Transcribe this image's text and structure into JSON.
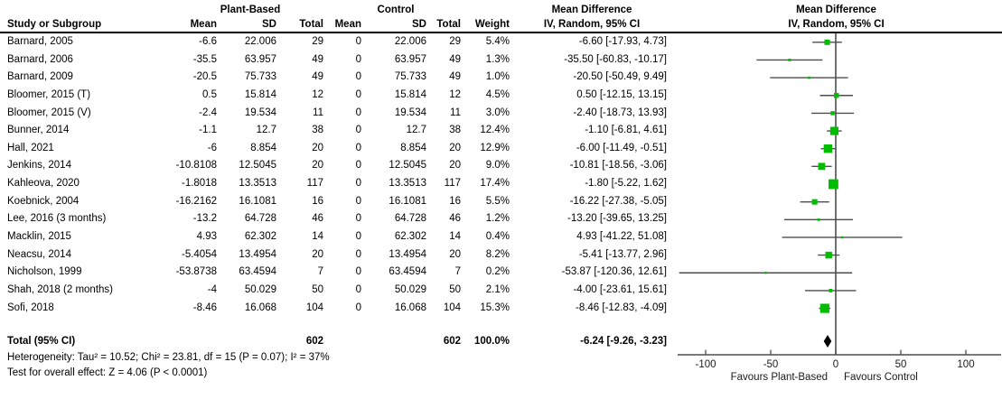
{
  "header": {
    "study_col": "Study or Subgroup",
    "group1": "Plant-Based",
    "group2": "Control",
    "mean": "Mean",
    "sd": "SD",
    "total": "Total",
    "weight": "Weight",
    "md_title": "Mean Difference",
    "md_subtitle": "IV, Random, 95% CI",
    "plot_title": "Mean Difference",
    "plot_subtitle": "IV, Random, 95% CI"
  },
  "chart_data": {
    "type": "forest",
    "effect_measure": "Mean Difference, IV, Random, 95% CI",
    "marker_color": "#00bd00",
    "line_color": "#4d4d4d",
    "x_axis": {
      "ticks": [
        -100,
        -50,
        0,
        50,
        100
      ],
      "xlim": [
        -122,
        128
      ],
      "label_left": "Favours Plant-Based",
      "label_right": "Favours Control"
    },
    "studies": [
      {
        "name": "Barnard, 2005",
        "pb_mean": "-6.6",
        "pb_sd": "22.006",
        "pb_total": "29",
        "c_mean": "0",
        "c_sd": "22.006",
        "c_total": "29",
        "weight": "5.4%",
        "w": 5.4,
        "md": -6.6,
        "lo": -17.93,
        "hi": 4.73,
        "ci_label": "-6.60 [-17.93, 4.73]"
      },
      {
        "name": "Barnard, 2006",
        "pb_mean": "-35.5",
        "pb_sd": "63.957",
        "pb_total": "49",
        "c_mean": "0",
        "c_sd": "63.957",
        "c_total": "49",
        "weight": "1.3%",
        "w": 1.3,
        "md": -35.5,
        "lo": -60.83,
        "hi": -10.17,
        "ci_label": "-35.50 [-60.83, -10.17]"
      },
      {
        "name": "Barnard, 2009",
        "pb_mean": "-20.5",
        "pb_sd": "75.733",
        "pb_total": "49",
        "c_mean": "0",
        "c_sd": "75.733",
        "c_total": "49",
        "weight": "1.0%",
        "w": 1.0,
        "md": -20.5,
        "lo": -50.49,
        "hi": 9.49,
        "ci_label": "-20.50 [-50.49, 9.49]"
      },
      {
        "name": "Bloomer, 2015 (T)",
        "pb_mean": "0.5",
        "pb_sd": "15.814",
        "pb_total": "12",
        "c_mean": "0",
        "c_sd": "15.814",
        "c_total": "12",
        "weight": "4.5%",
        "w": 4.5,
        "md": 0.5,
        "lo": -12.15,
        "hi": 13.15,
        "ci_label": "0.50 [-12.15, 13.15]"
      },
      {
        "name": "Bloomer, 2015 (V)",
        "pb_mean": "-2.4",
        "pb_sd": "19.534",
        "pb_total": "11",
        "c_mean": "0",
        "c_sd": "19.534",
        "c_total": "11",
        "weight": "3.0%",
        "w": 3.0,
        "md": -2.4,
        "lo": -18.73,
        "hi": 13.93,
        "ci_label": "-2.40 [-18.73, 13.93]"
      },
      {
        "name": "Bunner, 2014",
        "pb_mean": "-1.1",
        "pb_sd": "12.7",
        "pb_total": "38",
        "c_mean": "0",
        "c_sd": "12.7",
        "c_total": "38",
        "weight": "12.4%",
        "w": 12.4,
        "md": -1.1,
        "lo": -6.81,
        "hi": 4.61,
        "ci_label": "-1.10 [-6.81, 4.61]"
      },
      {
        "name": "Hall, 2021",
        "pb_mean": "-6",
        "pb_sd": "8.854",
        "pb_total": "20",
        "c_mean": "0",
        "c_sd": "8.854",
        "c_total": "20",
        "weight": "12.9%",
        "w": 12.9,
        "md": -6.0,
        "lo": -11.49,
        "hi": -0.51,
        "ci_label": "-6.00 [-11.49, -0.51]"
      },
      {
        "name": "Jenkins, 2014",
        "pb_mean": "-10.8108",
        "pb_sd": "12.5045",
        "pb_total": "20",
        "c_mean": "0",
        "c_sd": "12.5045",
        "c_total": "20",
        "weight": "9.0%",
        "w": 9.0,
        "md": -10.81,
        "lo": -18.56,
        "hi": -3.06,
        "ci_label": "-10.81 [-18.56, -3.06]"
      },
      {
        "name": "Kahleova, 2020",
        "pb_mean": "-1.8018",
        "pb_sd": "13.3513",
        "pb_total": "117",
        "c_mean": "0",
        "c_sd": "13.3513",
        "c_total": "117",
        "weight": "17.4%",
        "w": 17.4,
        "md": -1.8,
        "lo": -5.22,
        "hi": 1.62,
        "ci_label": "-1.80 [-5.22, 1.62]"
      },
      {
        "name": "Koebnick, 2004",
        "pb_mean": "-16.2162",
        "pb_sd": "16.1081",
        "pb_total": "16",
        "c_mean": "0",
        "c_sd": "16.1081",
        "c_total": "16",
        "weight": "5.5%",
        "w": 5.5,
        "md": -16.22,
        "lo": -27.38,
        "hi": -5.05,
        "ci_label": "-16.22 [-27.38, -5.05]"
      },
      {
        "name": "Lee, 2016 (3 months)",
        "pb_mean": "-13.2",
        "pb_sd": "64.728",
        "pb_total": "46",
        "c_mean": "0",
        "c_sd": "64.728",
        "c_total": "46",
        "weight": "1.2%",
        "w": 1.2,
        "md": -13.2,
        "lo": -39.65,
        "hi": 13.25,
        "ci_label": "-13.20 [-39.65, 13.25]"
      },
      {
        "name": "Macklin, 2015",
        "pb_mean": "4.93",
        "pb_sd": "62.302",
        "pb_total": "14",
        "c_mean": "0",
        "c_sd": "62.302",
        "c_total": "14",
        "weight": "0.4%",
        "w": 0.4,
        "md": 4.93,
        "lo": -41.22,
        "hi": 51.08,
        "ci_label": "4.93 [-41.22, 51.08]"
      },
      {
        "name": "Neacsu, 2014",
        "pb_mean": "-5.4054",
        "pb_sd": "13.4954",
        "pb_total": "20",
        "c_mean": "0",
        "c_sd": "13.4954",
        "c_total": "20",
        "weight": "8.2%",
        "w": 8.2,
        "md": -5.41,
        "lo": -13.77,
        "hi": 2.96,
        "ci_label": "-5.41 [-13.77, 2.96]"
      },
      {
        "name": "Nicholson, 1999",
        "pb_mean": "-53.8738",
        "pb_sd": "63.4594",
        "pb_total": "7",
        "c_mean": "0",
        "c_sd": "63.4594",
        "c_total": "7",
        "weight": "0.2%",
        "w": 0.2,
        "md": -53.87,
        "lo": -120.36,
        "hi": 12.61,
        "ci_label": "-53.87 [-120.36, 12.61]"
      },
      {
        "name": "Shah, 2018 (2 months)",
        "pb_mean": "-4",
        "pb_sd": "50.029",
        "pb_total": "50",
        "c_mean": "0",
        "c_sd": "50.029",
        "c_total": "50",
        "weight": "2.1%",
        "w": 2.1,
        "md": -4.0,
        "lo": -23.61,
        "hi": 15.61,
        "ci_label": "-4.00 [-23.61, 15.61]"
      },
      {
        "name": "Sofi, 2018",
        "pb_mean": "-8.46",
        "pb_sd": "16.068",
        "pb_total": "104",
        "c_mean": "0",
        "c_sd": "16.068",
        "c_total": "104",
        "weight": "15.3%",
        "w": 15.3,
        "md": -8.46,
        "lo": -12.83,
        "hi": -4.09,
        "ci_label": "-8.46 [-12.83, -4.09]"
      }
    ],
    "total": {
      "label": "Total (95% CI)",
      "pb_total": "602",
      "c_total": "602",
      "weight": "100.0%",
      "md": -6.24,
      "lo": -9.26,
      "hi": -3.23,
      "ci_label": "-6.24 [-9.26, -3.23]"
    }
  },
  "footer": {
    "heterogeneity": "Heterogeneity: Tau² = 10.52; Chi² = 23.81, df = 15 (P = 0.07); I² = 37%",
    "overall_effect": "Test for overall effect: Z = 4.06 (P < 0.0001)"
  }
}
